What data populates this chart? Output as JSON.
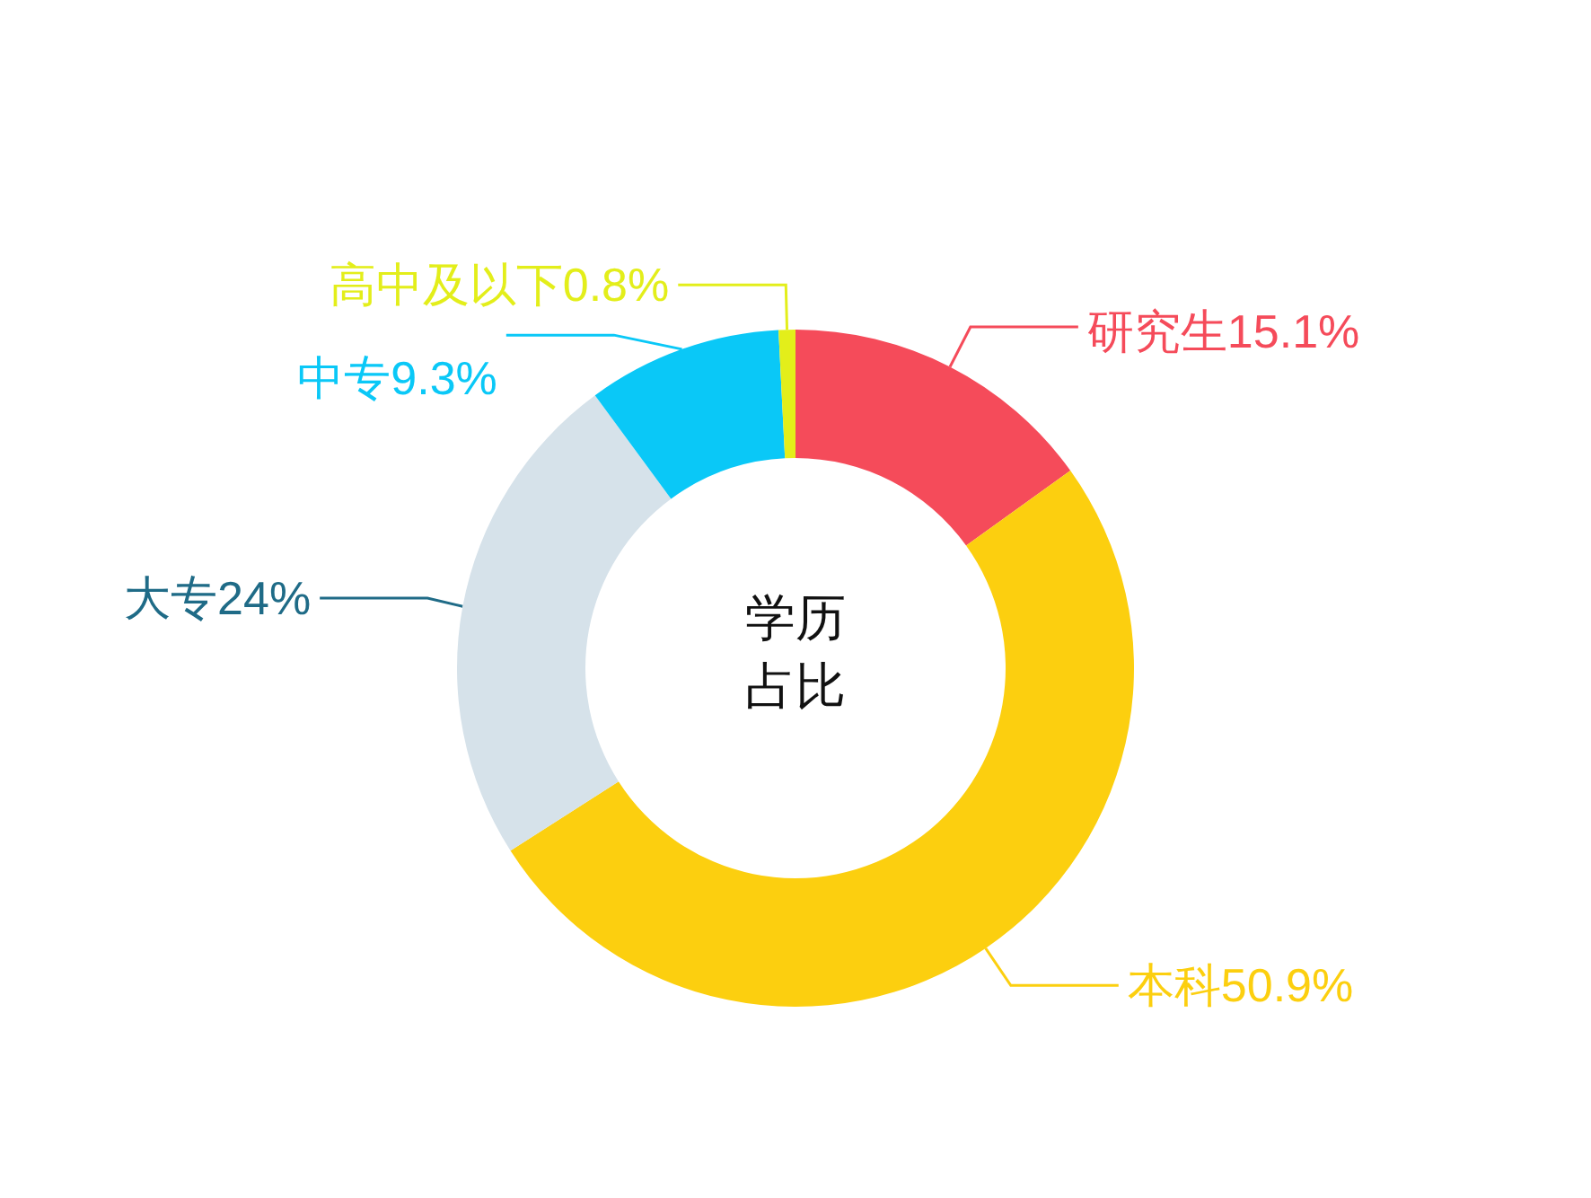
{
  "chart_data": {
    "type": "donut",
    "title": "学历占比",
    "categories": [
      "研究生",
      "本科",
      "大专",
      "中专",
      "高中及以下"
    ],
    "values": [
      15.1,
      50.9,
      24,
      9.3,
      0.8
    ],
    "value_labels": [
      "15.1%",
      "50.9%",
      "24%",
      "9.3%",
      "0.8%"
    ],
    "colors": [
      "#f54b5a",
      "#fccf0f",
      "#d6e2ea",
      "#0ac8f7",
      "#e3ee1a"
    ],
    "legend": false
  }
}
